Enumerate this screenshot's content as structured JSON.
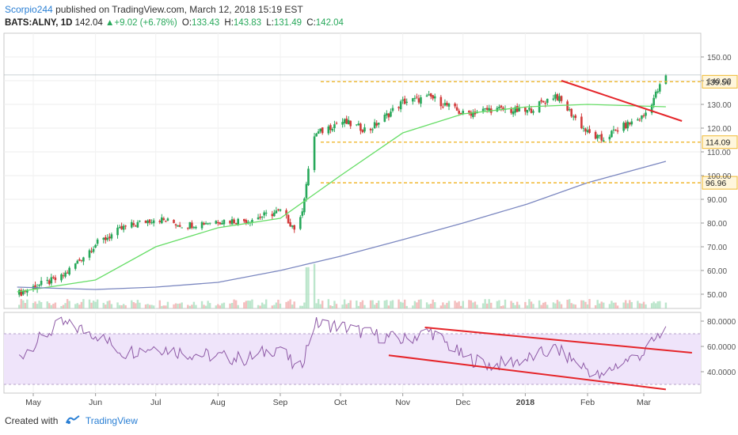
{
  "header": {
    "author": "Scorpio244",
    "published": "published on TradingView.com, March 12, 2018 15:19 EST",
    "symbol": "BATS:ALNY, 1D",
    "last": "142.04",
    "up_arrow": "▲",
    "change": "+9.02 (+6.78%)",
    "open_label": "O:",
    "open": "133.43",
    "high_label": "H:",
    "high": "143.83",
    "low_label": "L:",
    "low": "131.49",
    "close_label": "C:",
    "close": "142.04"
  },
  "footer": {
    "created_with": "Created with",
    "brand": "TradingView"
  },
  "colors": {
    "up": "#27a85a",
    "down": "#d23b3b",
    "sma_fast": "#66dd66",
    "sma_slow": "#7b87c0",
    "support": "#f0b830",
    "trend": "#e5252a",
    "rsi_line": "#8e5aa6",
    "rsi_band": "#efe4fa"
  },
  "chart_data": [
    {
      "type": "line",
      "title": "BATS:ALNY, 1D",
      "x_ticks": [
        "May",
        "Jun",
        "Jul",
        "Aug",
        "Sep",
        "Oct",
        "Nov",
        "Dec",
        "2018",
        "Feb",
        "Mar"
      ],
      "y_ticks": [
        "150.00",
        "140.00",
        "130.00",
        "120.00",
        "110.00",
        "100.00",
        "90.00",
        "80.00",
        "70.00",
        "60.00",
        "50.00"
      ],
      "ylim": [
        45,
        155
      ],
      "price_label": "142.04",
      "series": [
        {
          "name": "",
          "x": [
            "Apr 23",
            "May 1",
            "May 15",
            "Jun 1",
            "Jun 15",
            "Jul 1",
            "Jul 15",
            "Aug 1",
            "Aug 15",
            "Sep 1",
            "Sep 10",
            "Sep 18",
            "Oct 1",
            "Oct 15",
            "Nov 1",
            "Nov 15",
            "Dec 1",
            "Dec 15",
            "Jan 2",
            "Jan 16",
            "Feb 1",
            "Feb 8",
            "Feb 15",
            "Mar 1",
            "Mar 12"
          ],
          "values": [
            50,
            53,
            57,
            71,
            78,
            82,
            79,
            81,
            81,
            85,
            76,
            117,
            123,
            119,
            131,
            133,
            126,
            128,
            127,
            134,
            118,
            115,
            119,
            125,
            142.04
          ]
        }
      ],
      "horizontal_levels": [
        139.56,
        114.09,
        96.96
      ],
      "trendlines": [
        {
          "from": [
            "Jan 19",
            140
          ],
          "to": [
            "Mar 20",
            123
          ]
        }
      ],
      "moving_averages": [
        {
          "x": [
            "Apr 23",
            "Jun 1",
            "Jul 1",
            "Aug 1",
            "Sep 1",
            "Oct 1",
            "Nov 1",
            "Dec 1",
            "Jan 2",
            "Feb 1",
            "Mar 12"
          ],
          "values": [
            51,
            56,
            70,
            78,
            82,
            100,
            118,
            126,
            129,
            130,
            129
          ]
        },
        {
          "x": [
            "Apr 23",
            "Jun 1",
            "Jul 1",
            "Aug 1",
            "Sep 1",
            "Oct 1",
            "Nov 1",
            "Dec 1",
            "Jan 2",
            "Feb 1",
            "Mar 12"
          ],
          "values": [
            53,
            52,
            53,
            55,
            60,
            66,
            73,
            80,
            88,
            97,
            106
          ]
        }
      ]
    },
    {
      "type": "line",
      "title": "",
      "y_ticks": [
        "80.0000",
        "60.0000",
        "40.0000"
      ],
      "ylim": [
        25,
        86
      ],
      "band": [
        30,
        70
      ],
      "series": [
        {
          "name": "",
          "x": [
            "Apr 23",
            "May 1",
            "May 15",
            "Jun 1",
            "Jun 15",
            "Jul 1",
            "Jul 15",
            "Aug 1",
            "Aug 15",
            "Sep 1",
            "Sep 10",
            "Sep 18",
            "Oct 1",
            "Oct 15",
            "Nov 1",
            "Nov 15",
            "Dec 1",
            "Dec 15",
            "Jan 2",
            "Jan 16",
            "Feb 1",
            "Feb 8",
            "Feb 15",
            "Mar 1",
            "Mar 12"
          ],
          "values": [
            50,
            62,
            78,
            70,
            55,
            60,
            55,
            52,
            50,
            60,
            38,
            78,
            76,
            70,
            65,
            72,
            52,
            45,
            50,
            58,
            42,
            35,
            45,
            55,
            74
          ]
        }
      ],
      "trendlines": [
        {
          "from": [
            "Nov 12",
            75
          ],
          "to": [
            "Mar 25",
            55
          ]
        },
        {
          "from": [
            "Oct 25",
            53
          ],
          "to": [
            "Mar 12",
            26
          ]
        }
      ]
    }
  ]
}
